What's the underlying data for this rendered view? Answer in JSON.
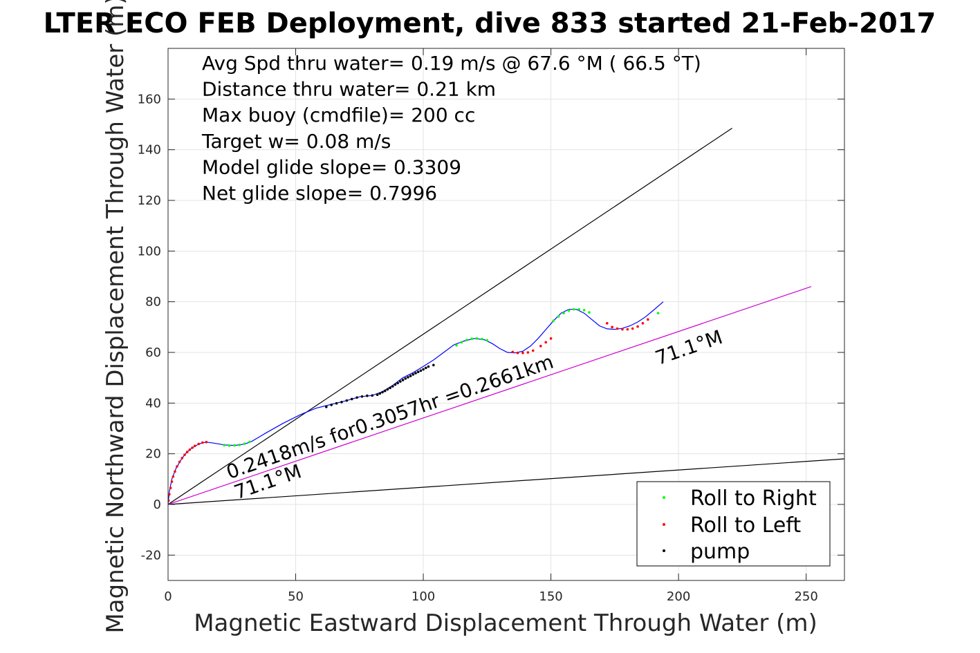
{
  "chart_data": {
    "type": "scatter",
    "title": "LTER ECO FEB Deployment, dive 833 started 21-Feb-2017",
    "xlabel": "Magnetic Eastward Displacement Through Water (m)",
    "ylabel": "Magnetic Northward Displacement Through Water (m)",
    "xlim": [
      0,
      265
    ],
    "ylim": [
      -30,
      180
    ],
    "xticks": [
      0,
      50,
      100,
      150,
      200,
      250
    ],
    "yticks": [
      -20,
      0,
      20,
      40,
      60,
      80,
      100,
      120,
      140,
      160
    ],
    "grid": true,
    "legend_position": "bottom-right",
    "info_lines": [
      "Avg Spd thru water=  0.19 m/s @  67.6 °M ( 66.5 °T)",
      "Distance thru water=  0.21 km",
      "Max buoy (cmdfile)= 200 cc",
      "Target w= 0.08 m/s",
      "Model glide slope= 0.3309",
      "Net glide slope= 0.7996"
    ],
    "annotations": [
      {
        "text": "0.2418m/s for0.3057hr =0.2661km",
        "x": 24,
        "y": 10,
        "angle_deg": 19
      },
      {
        "text": "71.1°M",
        "x": 27,
        "y": 2,
        "angle_deg": 19
      },
      {
        "text": "71.1°M",
        "x": 192,
        "y": 55,
        "angle_deg": 19
      }
    ],
    "lines": [
      {
        "name": "glide-cone-upper",
        "color": "#000000",
        "x": [
          0,
          221
        ],
        "y": [
          0,
          148.5
        ]
      },
      {
        "name": "glide-cone-lower",
        "color": "#000000",
        "x": [
          0,
          265
        ],
        "y": [
          0,
          18
        ]
      },
      {
        "name": "avg-heading",
        "color": "#d000d0",
        "x": [
          0,
          252
        ],
        "y": [
          0,
          86
        ]
      }
    ],
    "track": {
      "color": "#0000ff",
      "x": [
        0,
        0.5,
        1.5,
        3,
        5,
        7,
        9,
        11,
        13,
        15,
        18,
        22,
        26,
        30,
        33,
        38,
        45,
        52,
        58,
        62,
        66,
        70,
        75,
        80,
        84,
        88,
        92,
        96,
        100,
        104,
        108,
        112,
        116,
        120,
        124,
        127,
        130,
        133,
        136,
        139,
        142,
        145,
        148,
        151,
        154,
        157,
        160,
        163,
        166,
        169,
        172,
        175,
        178,
        181,
        184,
        187,
        190,
        194
      ],
      "y": [
        0,
        5,
        10,
        14,
        17.5,
        20.2,
        22,
        23.3,
        24.2,
        24.6,
        24.2,
        23.5,
        23.3,
        23.8,
        25,
        28,
        32,
        35.5,
        38,
        39,
        40,
        41,
        42.5,
        43,
        44.5,
        47,
        50,
        52,
        54.5,
        57,
        60,
        63,
        64.5,
        65.5,
        65,
        63.5,
        61.5,
        60,
        59.8,
        60.5,
        62.5,
        65.5,
        69,
        72.5,
        75.5,
        77,
        77,
        75.5,
        73,
        70.5,
        69.3,
        69.1,
        69.5,
        70.5,
        72,
        74,
        76.5,
        80
      ]
    },
    "series": [
      {
        "name": "Roll to Right",
        "color": "#00ff00",
        "x": [
          22,
          24,
          26,
          28,
          30,
          32,
          113,
          115,
          117,
          119,
          121,
          123,
          125,
          151,
          153,
          155,
          157,
          159,
          161,
          163,
          165,
          192
        ],
        "y": [
          23.4,
          23.2,
          23.3,
          23.5,
          24,
          24.7,
          62.8,
          64,
          64.9,
          65.4,
          65.5,
          65.3,
          64.8,
          72.5,
          74.2,
          75.5,
          76.5,
          77,
          77,
          76.7,
          75.8,
          75.5
        ]
      },
      {
        "name": "Roll to Left",
        "color": "#ff0000",
        "x": [
          0.2,
          0.5,
          1,
          1.5,
          2,
          2.7,
          3.5,
          4.5,
          5.5,
          6.5,
          7.5,
          8.5,
          9.5,
          10.5,
          12,
          13.5,
          15,
          135,
          137,
          139,
          141,
          143,
          146,
          148,
          150,
          172,
          174,
          176,
          178,
          180,
          182,
          184,
          186,
          188
        ],
        "y": [
          1.5,
          4,
          6.5,
          9,
          11,
          13,
          15,
          16.8,
          18.3,
          19.6,
          20.7,
          21.6,
          22.4,
          23.1,
          23.9,
          24.4,
          24.6,
          60.2,
          59.8,
          59.8,
          60,
          60.7,
          62.5,
          64,
          65.5,
          71.5,
          70,
          69.4,
          69.1,
          69.1,
          69.4,
          70.2,
          71.5,
          73
        ]
      },
      {
        "name": "pump",
        "color": "#000000",
        "x": [
          62,
          64,
          66,
          68,
          70,
          72,
          74,
          76,
          78,
          80,
          82,
          83,
          84,
          85,
          86,
          87,
          88,
          89,
          90,
          91,
          92,
          93,
          94,
          95,
          96,
          97,
          98,
          99,
          100,
          101,
          102,
          104
        ],
        "y": [
          38.5,
          39.3,
          39.9,
          40.4,
          41,
          41.6,
          42.2,
          42.6,
          42.9,
          43,
          43.3,
          43.8,
          44.3,
          44.8,
          45.4,
          46,
          46.6,
          47.3,
          47.9,
          48.5,
          49.1,
          49.7,
          50.2,
          50.7,
          51.3,
          51.8,
          52.3,
          52.8,
          53.3,
          53.9,
          54.4,
          55
        ]
      }
    ]
  }
}
